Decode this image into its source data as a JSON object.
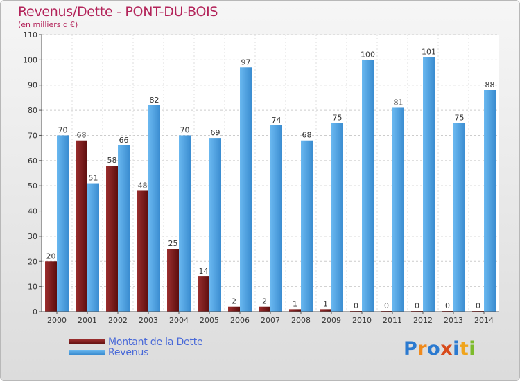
{
  "title": "Revenus/Dette - PONT-DU-BOIS",
  "subtitle": "(en milliers d'€)",
  "logo": {
    "text": "Proxiti",
    "letters": [
      {
        "ch": "P",
        "color": "#2b7ad0"
      },
      {
        "ch": "r",
        "color": "#f08a1c"
      },
      {
        "ch": "o",
        "color": "#2b7ad0"
      },
      {
        "ch": "x",
        "color": "#d84a1a"
      },
      {
        "ch": "i",
        "color": "#2b7ad0"
      },
      {
        "ch": "t",
        "color": "#f0a41c"
      },
      {
        "ch": "i",
        "color": "#7dbb2c"
      }
    ]
  },
  "chart_data": {
    "type": "bar",
    "title": "Revenus/Dette - PONT-DU-BOIS",
    "subtitle": "(en milliers d'€)",
    "categories": [
      "2000",
      "2001",
      "2002",
      "2003",
      "2004",
      "2005",
      "2006",
      "2007",
      "2008",
      "2009",
      "2010",
      "2011",
      "2012",
      "2013",
      "2014"
    ],
    "series": [
      {
        "name": "Montant de la Dette",
        "color": "#7a1c1c",
        "values": [
          20,
          68,
          58,
          48,
          25,
          14,
          2,
          2,
          1,
          1,
          0,
          0,
          0,
          0,
          0
        ]
      },
      {
        "name": "Revenus",
        "color": "#4aa0e0",
        "values": [
          70,
          51,
          66,
          82,
          70,
          69,
          97,
          74,
          68,
          75,
          100,
          81,
          101,
          75,
          88
        ]
      }
    ],
    "ylim": [
      0,
      110
    ],
    "yticks": [
      0,
      10,
      20,
      30,
      40,
      50,
      60,
      70,
      80,
      90,
      100,
      110
    ],
    "grid": true,
    "legend": "bottom-left"
  }
}
